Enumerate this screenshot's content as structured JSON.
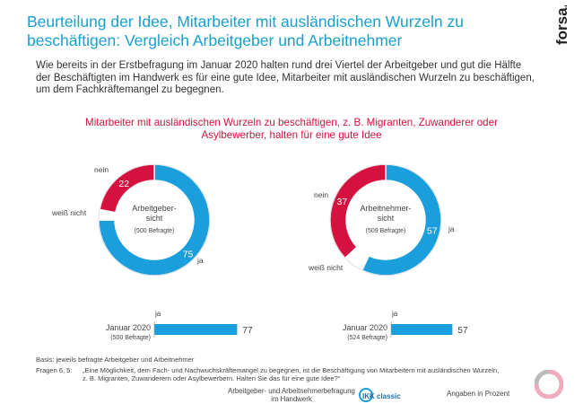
{
  "header": {
    "title": "Beurteilung der Idee, Mitarbeiter mit ausländischen Wurzeln zu beschäftigen: Vergleich Arbeitgeber und Arbeitnehmer",
    "logo_text": "forsa.",
    "intro": "Wie bereits in der Erstbefragung im Januar 2020 halten rund drei Viertel der Arbeitgeber und gut die Hälfte der Beschäftigten im Handwerk es für eine gute Idee, Mitarbeiter mit ausländischen Wurzeln zu beschäftigen, um dem Fachkräftemangel zu begegnen."
  },
  "chart_data": [
    {
      "type": "pie",
      "title": "Mitarbeiter mit ausländischen Wurzeln zu beschäftigen, z. B. Migranten, Zuwanderer oder Asylbewerber, halten für eine gute Idee",
      "center_label": [
        "Arbeitgeber-",
        "sicht"
      ],
      "center_sub": "(500 Befragte)",
      "slices": [
        {
          "label": "ja",
          "value": 75,
          "color": "#1a9fdc"
        },
        {
          "label": "weiß nicht",
          "value": 3,
          "color": "#ffffff"
        },
        {
          "label": "nein",
          "value": 22,
          "color": "#d4113f"
        }
      ]
    },
    {
      "type": "pie",
      "center_label": [
        "Arbeitnehmer-",
        "sicht"
      ],
      "center_sub": "(509 Befragte)",
      "slices": [
        {
          "label": "ja",
          "value": 57,
          "color": "#1a9fdc"
        },
        {
          "label": "weiß nicht",
          "value": 6,
          "color": "#ffffff"
        },
        {
          "label": "nein",
          "value": 37,
          "color": "#d4113f"
        }
      ]
    },
    {
      "type": "bar",
      "series_label": "ja",
      "category": "Januar 2020",
      "category_sub": "(500 Befragte)",
      "value": 77,
      "xlim": [
        0,
        100
      ],
      "color": "#1a9fdc"
    },
    {
      "type": "bar",
      "series_label": "ja",
      "category": "Januar 2020",
      "category_sub": "(524 Befragte)",
      "value": 57,
      "xlim": [
        0,
        100
      ],
      "color": "#1a9fdc"
    }
  ],
  "footer": {
    "basis": "Basis: jeweils befragte Arbeitgeber und Arbeitnehmer",
    "fragen_label": "Fragen 6, 5:",
    "fragen_text": "„Eine Möglichkeit, dem Fach- und Nachwuchskräftemangel zu begegnen, ist die Beschäftigung von Mitarbeitern mit ausländischen Wurzeln, z. B. Migranten, Zuwanderern oder Asylbewerbern. Halten Sie das für eine gute Idee?“",
    "survey_line1": "Arbeitgeber- und Arbeitnehmerbefragung",
    "survey_line2": "im Handwerk",
    "ikk_text": "IKK classic",
    "unit_note": "Angaben in Prozent"
  },
  "colors": {
    "accent": "#1aa0cc",
    "ja": "#1a9fdc",
    "nein": "#d4113f"
  }
}
